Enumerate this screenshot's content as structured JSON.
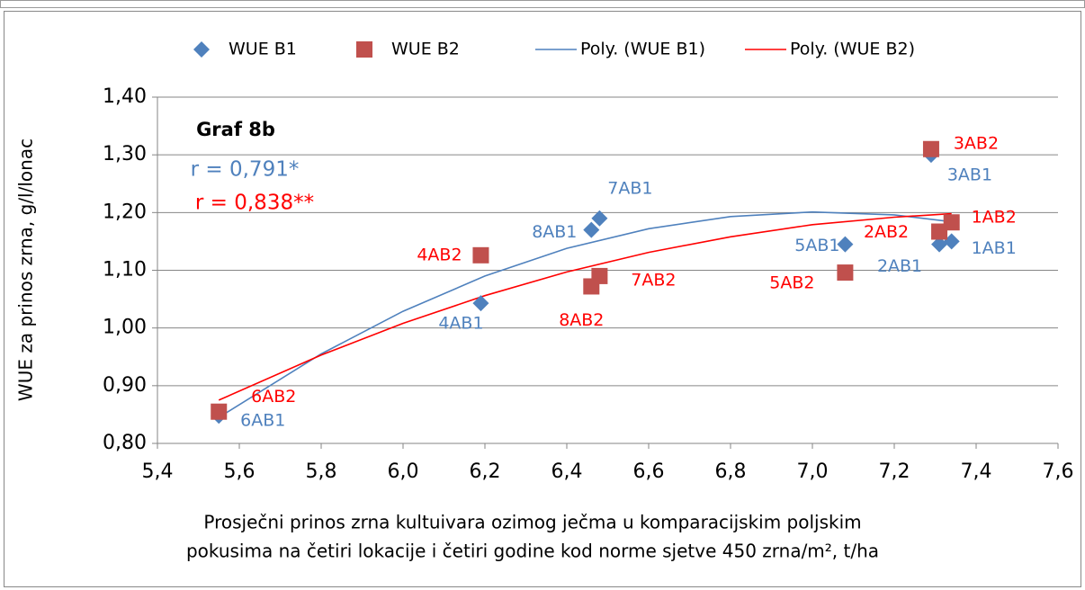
{
  "chart_data": {
    "type": "scatter",
    "annotations": [
      "Graf 8b",
      "r = 0,791*",
      "r = 0,838**"
    ],
    "xlabel": [
      "Prosječni prinos zrna kultuivara ozimog ječma u komparacijskim poljskim",
      "pokusima na četiri lokacije i četiri godine kod norme sjetve 450 zrna/m², t/ha"
    ],
    "ylabel": "WUE za prinos zrna, g/l/lonac",
    "xlim": [
      5.4,
      7.6
    ],
    "ylim": [
      0.8,
      1.4
    ],
    "xticks": [
      {
        "value": 5.4,
        "label": "5,4"
      },
      {
        "value": 5.6,
        "label": "5,6"
      },
      {
        "value": 5.8,
        "label": "5,8"
      },
      {
        "value": 6.0,
        "label": "6,0"
      },
      {
        "value": 6.2,
        "label": "6,2"
      },
      {
        "value": 6.4,
        "label": "6,4"
      },
      {
        "value": 6.6,
        "label": "6,6"
      },
      {
        "value": 6.8,
        "label": "6,8"
      },
      {
        "value": 7.0,
        "label": "7,0"
      },
      {
        "value": 7.2,
        "label": "7,2"
      },
      {
        "value": 7.4,
        "label": "7,4"
      },
      {
        "value": 7.6,
        "label": "7,6"
      }
    ],
    "yticks": [
      {
        "value": 0.8,
        "label": "0,80"
      },
      {
        "value": 0.9,
        "label": "0,90"
      },
      {
        "value": 1.0,
        "label": "1,00"
      },
      {
        "value": 1.1,
        "label": "1,10"
      },
      {
        "value": 1.2,
        "label": "1,20"
      },
      {
        "value": 1.3,
        "label": "1,30"
      },
      {
        "value": 1.4,
        "label": "1,40"
      }
    ],
    "grid": true,
    "series": [
      {
        "name": "WUE B1",
        "color": "#4f81bd",
        "marker": "diamond",
        "x": [
          7.34,
          7.31,
          7.29,
          6.19,
          7.08,
          5.55,
          6.48,
          6.46
        ],
        "values": [
          1.15,
          1.145,
          1.3,
          1.043,
          1.145,
          0.848,
          1.19,
          1.17
        ],
        "point_labels": [
          "1AB1",
          "2AB1",
          "3AB1",
          "4AB1",
          "5AB1",
          "6AB1",
          "7AB1",
          "8AB1"
        ]
      },
      {
        "name": "WUE B2",
        "color": "#c0504d",
        "marker": "square",
        "x": [
          7.34,
          7.31,
          7.29,
          6.19,
          7.08,
          5.55,
          6.48,
          6.46
        ],
        "values": [
          1.183,
          1.167,
          1.31,
          1.126,
          1.096,
          0.855,
          1.09,
          1.072
        ],
        "point_labels": [
          "1AB2",
          "2AB2",
          "3AB2",
          "4AB2",
          "5AB2",
          "6AB2",
          "7AB2",
          "8AB2"
        ]
      }
    ],
    "trendlines": [
      {
        "name": "Poly. (WUE B1)",
        "color": "#4f81bd",
        "x": [
          5.55,
          5.8,
          6.0,
          6.2,
          6.4,
          6.6,
          6.8,
          7.0,
          7.2,
          7.34
        ],
        "values": [
          0.845,
          0.955,
          1.029,
          1.09,
          1.138,
          1.172,
          1.193,
          1.201,
          1.196,
          1.184
        ]
      },
      {
        "name": "Poly. (WUE B2)",
        "color": "#ff0000",
        "x": [
          5.55,
          5.8,
          6.0,
          6.2,
          6.4,
          6.6,
          6.8,
          7.0,
          7.2,
          7.34
        ],
        "values": [
          0.875,
          0.953,
          1.008,
          1.056,
          1.097,
          1.131,
          1.158,
          1.179,
          1.192,
          1.198
        ]
      }
    ]
  }
}
